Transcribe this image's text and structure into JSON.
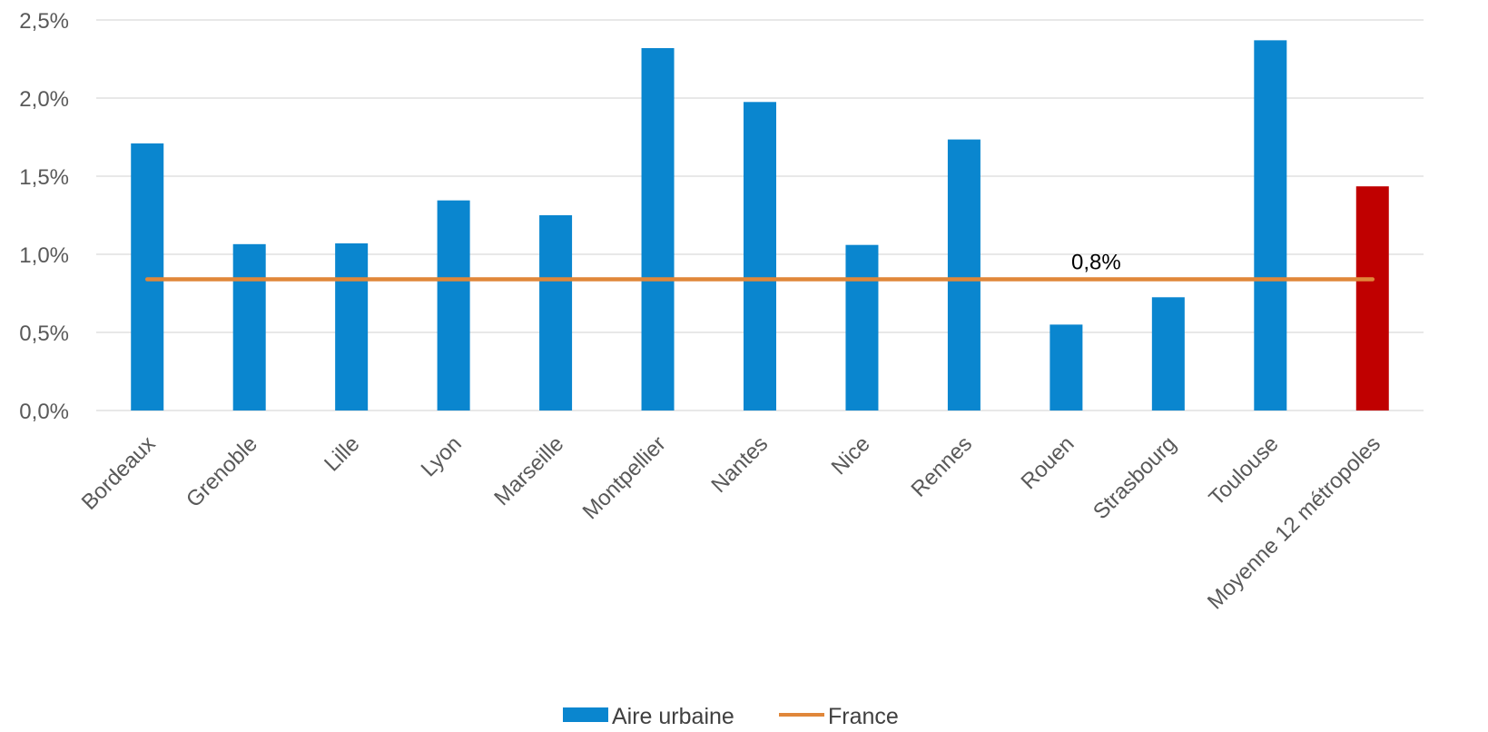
{
  "chart_data": {
    "type": "bar",
    "categories": [
      "Bordeaux",
      "Grenoble",
      "Lille",
      "Lyon",
      "Marseille",
      "Montpellier",
      "Nantes",
      "Nice",
      "Rennes",
      "Rouen",
      "Strasbourg",
      "Toulouse",
      "Moyenne 12 métropoles"
    ],
    "series": [
      {
        "name": "Aire urbaine",
        "type": "bar",
        "values": [
          1.71,
          1.065,
          1.07,
          1.345,
          1.25,
          2.32,
          1.975,
          1.06,
          1.735,
          0.55,
          0.725,
          2.37,
          1.435
        ],
        "color": "#0A86CF",
        "highlight": {
          "index": 12,
          "color": "#C00000"
        }
      },
      {
        "name": "France",
        "type": "line",
        "values": [
          0.84,
          0.84,
          0.84,
          0.84,
          0.84,
          0.84,
          0.84,
          0.84,
          0.84,
          0.84,
          0.84,
          0.84,
          0.84
        ],
        "color": "#E0873A",
        "label": "0,8%",
        "label_category_index": 9
      }
    ],
    "yticks": [
      "0,0%",
      "0,5%",
      "1,0%",
      "1,5%",
      "2,0%",
      "2,5%"
    ],
    "ylim": [
      0,
      2.5
    ],
    "grid": true,
    "legend_position": "bottom",
    "title": "",
    "xlabel": "",
    "ylabel": ""
  }
}
